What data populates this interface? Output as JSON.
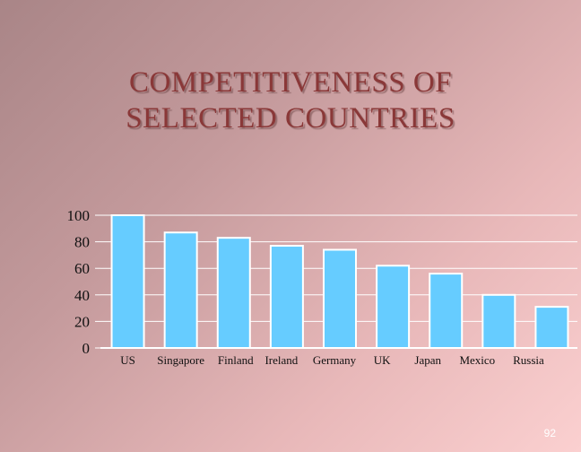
{
  "title_lines": [
    "COMPETITIVENESS OF",
    "SELECTED COUNTRIES"
  ],
  "page_number": "92",
  "colors": {
    "bar_fill": "#66ccff",
    "bar_stroke": "#ffffff",
    "gridline": "#ffffff",
    "title": "#8a3838"
  },
  "chart_data": {
    "type": "bar",
    "title": "COMPETITIVENESS OF SELECTED COUNTRIES",
    "xlabel": "",
    "ylabel": "",
    "categories": [
      "US",
      "Singapore",
      "Finland",
      "Ireland",
      "Germany",
      "UK",
      "Japan",
      "Mexico",
      "Russia"
    ],
    "values": [
      100,
      87,
      83,
      77,
      74,
      62,
      56,
      40,
      31
    ],
    "ylim": [
      0,
      100
    ],
    "yticks": [
      "100",
      "80",
      "60",
      "40",
      "20",
      "0"
    ],
    "ytick_values": [
      100,
      80,
      60,
      40,
      20,
      0
    ],
    "grid": true,
    "legend": "none"
  }
}
